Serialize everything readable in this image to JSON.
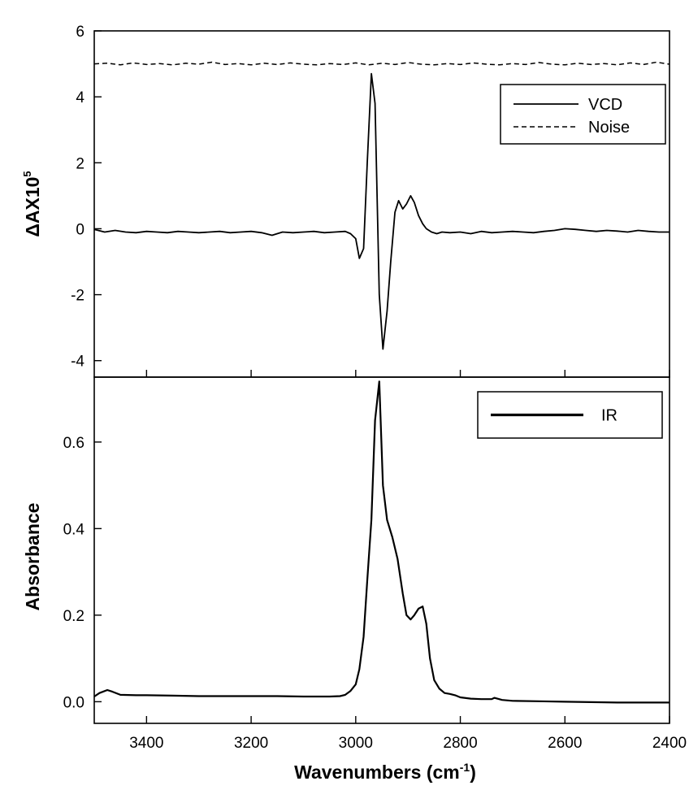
{
  "chart_data": [
    {
      "type": "line",
      "panel": "top",
      "title": "",
      "xlabel": "",
      "ylabel": "ΔAX10",
      "ylabel_superscript": "5",
      "xlim": [
        3500,
        2400
      ],
      "ylim": [
        -4.5,
        6
      ],
      "y_ticks": [
        6,
        4,
        2,
        0,
        -2,
        -4
      ],
      "y_tick_labels": [
        "6",
        "4",
        "2",
        "0",
        "-2",
        "-4"
      ],
      "x_ticks": [
        3400,
        3200,
        3000,
        2800,
        2600,
        2400
      ],
      "grid": false,
      "legend_position": "top-right",
      "series": [
        {
          "name": "VCD",
          "style": "solid",
          "x": [
            3500,
            3480,
            3460,
            3440,
            3420,
            3400,
            3380,
            3360,
            3340,
            3320,
            3300,
            3280,
            3260,
            3240,
            3220,
            3200,
            3180,
            3160,
            3140,
            3120,
            3100,
            3080,
            3060,
            3040,
            3020,
            3010,
            3000,
            2993,
            2985,
            2978,
            2970,
            2963,
            2955,
            2948,
            2940,
            2933,
            2925,
            2918,
            2910,
            2903,
            2895,
            2888,
            2880,
            2872,
            2865,
            2855,
            2845,
            2835,
            2820,
            2800,
            2780,
            2760,
            2740,
            2720,
            2700,
            2680,
            2660,
            2640,
            2620,
            2600,
            2580,
            2560,
            2540,
            2520,
            2500,
            2480,
            2460,
            2440,
            2420,
            2400
          ],
          "values": [
            -0.02,
            -0.1,
            -0.05,
            -0.1,
            -0.12,
            -0.08,
            -0.1,
            -0.12,
            -0.08,
            -0.1,
            -0.12,
            -0.1,
            -0.08,
            -0.12,
            -0.1,
            -0.08,
            -0.12,
            -0.2,
            -0.1,
            -0.12,
            -0.1,
            -0.08,
            -0.12,
            -0.1,
            -0.08,
            -0.15,
            -0.3,
            -0.9,
            -0.6,
            2.0,
            4.7,
            3.8,
            -2.0,
            -3.65,
            -2.5,
            -1.0,
            0.5,
            0.85,
            0.6,
            0.75,
            1.0,
            0.8,
            0.4,
            0.15,
            0.0,
            -0.1,
            -0.15,
            -0.1,
            -0.12,
            -0.1,
            -0.15,
            -0.08,
            -0.12,
            -0.1,
            -0.08,
            -0.1,
            -0.12,
            -0.08,
            -0.05,
            0.0,
            -0.02,
            -0.05,
            -0.08,
            -0.05,
            -0.07,
            -0.1,
            -0.05,
            -0.08,
            -0.1,
            -0.1
          ]
        },
        {
          "name": "Noise",
          "style": "dashed",
          "x": [
            3500,
            3475,
            3450,
            3425,
            3400,
            3375,
            3350,
            3325,
            3300,
            3275,
            3250,
            3225,
            3200,
            3175,
            3150,
            3125,
            3100,
            3075,
            3050,
            3025,
            3000,
            2975,
            2950,
            2925,
            2900,
            2875,
            2850,
            2825,
            2800,
            2775,
            2750,
            2725,
            2700,
            2675,
            2650,
            2625,
            2600,
            2575,
            2550,
            2525,
            2500,
            2475,
            2450,
            2425,
            2400
          ],
          "values": [
            5.0,
            5.02,
            4.97,
            5.03,
            4.98,
            5.01,
            4.97,
            5.02,
            4.99,
            5.05,
            4.98,
            5.01,
            4.97,
            5.02,
            4.98,
            5.03,
            4.99,
            4.97,
            5.01,
            4.98,
            5.03,
            4.97,
            5.02,
            4.98,
            5.04,
            4.99,
            4.97,
            5.01,
            4.98,
            5.03,
            4.99,
            4.97,
            5.01,
            4.98,
            5.04,
            4.99,
            4.97,
            5.02,
            4.98,
            5.01,
            4.97,
            5.03,
            4.98,
            5.05,
            4.99
          ]
        }
      ]
    },
    {
      "type": "line",
      "panel": "bottom",
      "title": "",
      "xlabel": "Wavenumbers (cm",
      "xlabel_superscript": "-1",
      "xlabel_suffix": ")",
      "ylabel": "Absorbance",
      "xlim": [
        3500,
        2400
      ],
      "ylim": [
        -0.05,
        0.75
      ],
      "x_ticks": [
        3400,
        3200,
        3000,
        2800,
        2600,
        2400
      ],
      "x_tick_labels": [
        "3400",
        "3200",
        "3000",
        "2800",
        "2600",
        "2400"
      ],
      "y_ticks": [
        0.6,
        0.4,
        0.2,
        0.0
      ],
      "y_tick_labels": [
        "0.6",
        "0.4",
        "0.2",
        "0.0"
      ],
      "grid": false,
      "legend_position": "top-right",
      "series": [
        {
          "name": "IR",
          "style": "solid-thick",
          "x": [
            3500,
            3490,
            3475,
            3465,
            3450,
            3420,
            3400,
            3350,
            3300,
            3250,
            3200,
            3150,
            3100,
            3050,
            3030,
            3020,
            3010,
            3000,
            2993,
            2985,
            2978,
            2970,
            2963,
            2955,
            2948,
            2940,
            2930,
            2920,
            2910,
            2903,
            2895,
            2888,
            2880,
            2872,
            2865,
            2858,
            2850,
            2840,
            2830,
            2820,
            2810,
            2800,
            2780,
            2760,
            2740,
            2735,
            2720,
            2700,
            2650,
            2600,
            2550,
            2500,
            2450,
            2400
          ],
          "values": [
            0.012,
            0.02,
            0.027,
            0.023,
            0.016,
            0.015,
            0.015,
            0.014,
            0.013,
            0.013,
            0.013,
            0.013,
            0.012,
            0.012,
            0.013,
            0.016,
            0.025,
            0.04,
            0.075,
            0.15,
            0.28,
            0.42,
            0.65,
            0.74,
            0.5,
            0.42,
            0.38,
            0.33,
            0.25,
            0.2,
            0.19,
            0.2,
            0.215,
            0.22,
            0.18,
            0.1,
            0.05,
            0.03,
            0.02,
            0.018,
            0.015,
            0.01,
            0.007,
            0.006,
            0.006,
            0.009,
            0.004,
            0.002,
            0.001,
            0.0,
            -0.001,
            -0.002,
            -0.002,
            -0.002
          ]
        }
      ]
    }
  ]
}
